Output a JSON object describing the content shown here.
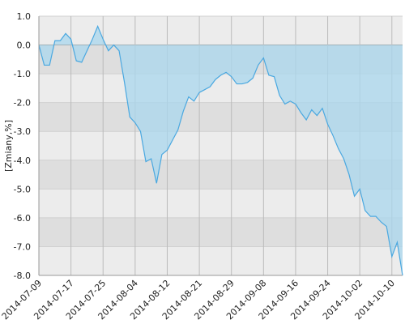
{
  "chart_data": {
    "type": "area",
    "y_label": "[Zmiany,%]",
    "categories": [
      "2014-07-09",
      null,
      null,
      null,
      null,
      null,
      "2014-07-17",
      null,
      null,
      null,
      null,
      null,
      "2014-07-25",
      null,
      null,
      null,
      null,
      null,
      "2014-08-04",
      null,
      null,
      null,
      null,
      null,
      "2014-08-12",
      null,
      null,
      null,
      null,
      null,
      "2014-08-21",
      null,
      null,
      null,
      null,
      null,
      "2014-08-29",
      null,
      null,
      null,
      null,
      null,
      "2014-09-08",
      null,
      null,
      null,
      null,
      null,
      "2014-09-16",
      null,
      null,
      null,
      null,
      null,
      "2014-09-24",
      null,
      null,
      null,
      null,
      null,
      "2014-10-02",
      null,
      null,
      null,
      null,
      null,
      "2014-10-10",
      null,
      null
    ],
    "values": [
      0.0,
      -0.7,
      -0.7,
      0.15,
      0.15,
      0.4,
      0.2,
      -0.55,
      -0.6,
      -0.2,
      0.2,
      0.65,
      0.2,
      -0.2,
      0.0,
      -0.2,
      -1.3,
      -2.5,
      -2.7,
      -3.0,
      -4.05,
      -3.95,
      -4.8,
      -3.8,
      -3.65,
      -3.3,
      -2.95,
      -2.3,
      -1.8,
      -1.95,
      -1.65,
      -1.55,
      -1.45,
      -1.2,
      -1.05,
      -0.95,
      -1.1,
      -1.35,
      -1.35,
      -1.3,
      -1.15,
      -0.7,
      -0.45,
      -1.05,
      -1.1,
      -1.75,
      -2.05,
      -1.95,
      -2.05,
      -2.35,
      -2.6,
      -2.25,
      -2.45,
      -2.2,
      -2.75,
      -3.15,
      -3.6,
      -3.95,
      -4.5,
      -5.25,
      -5.0,
      -5.75,
      -5.95,
      -5.95,
      -6.15,
      -6.3,
      -7.35,
      -6.85,
      -8.0
    ],
    "color": "#4aa8e0",
    "fill_color": "#a9d7ee",
    "ylim": [
      -8,
      1
    ],
    "yticks": [
      {
        "value": 1,
        "label": "1.0"
      },
      {
        "value": 0,
        "label": "0.0"
      },
      {
        "value": -1,
        "label": "-1.0"
      },
      {
        "value": -2,
        "label": "-2.0"
      },
      {
        "value": -3,
        "label": "-3.0"
      },
      {
        "value": -4,
        "label": "-4.0"
      },
      {
        "value": -5,
        "label": "-5.0"
      },
      {
        "value": -6,
        "label": "-6.0"
      },
      {
        "value": -7,
        "label": "-7.0"
      },
      {
        "value": -8,
        "label": "-8.0"
      }
    ],
    "grid": true
  }
}
